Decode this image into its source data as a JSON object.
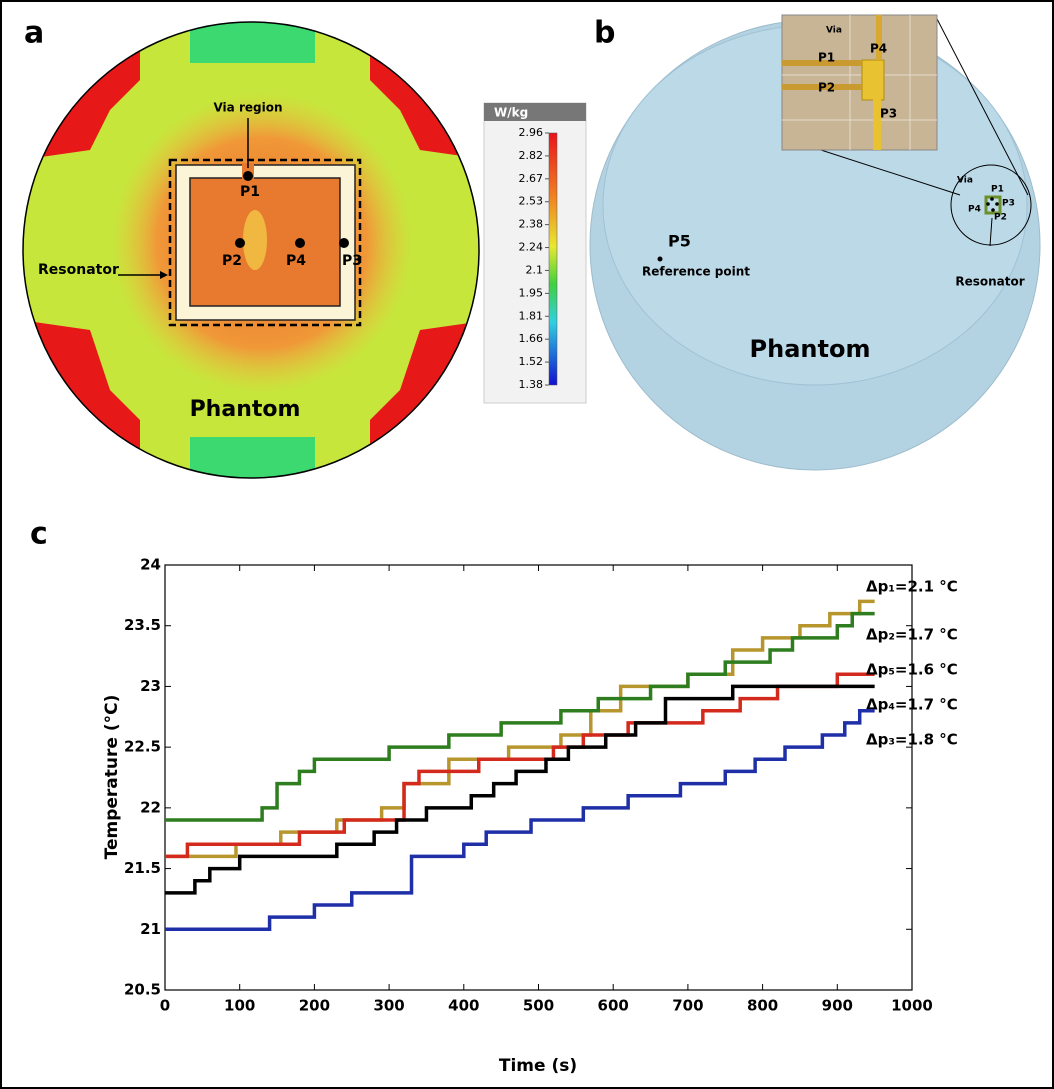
{
  "panel_a": {
    "label": "a",
    "via_label": "Via region",
    "points": [
      "P1",
      "P2",
      "P4",
      "P3"
    ],
    "resonator_label": "Resonator",
    "phantom_label": "Phantom",
    "colorbar": {
      "unit": "W/kg",
      "ticks": [
        2.96,
        2.82,
        2.67,
        2.53,
        2.38,
        2.24,
        2.1,
        1.95,
        1.81,
        1.66,
        1.52,
        1.38
      ]
    }
  },
  "panel_b": {
    "label": "b",
    "inset": {
      "via": "Via",
      "p1": "P1",
      "p4": "P4",
      "p2": "P2",
      "p3": "P3"
    },
    "detail": {
      "via": "Via",
      "p1": "P1",
      "p3": "P3",
      "p4": "P4",
      "p2": "P2"
    },
    "resonator_label": "Resonator",
    "p5": "P5",
    "reference_label": "Reference point",
    "phantom_label": "Phantom"
  },
  "chart_data": {
    "type": "step",
    "panel_label": "c",
    "x_label": "Time (s)",
    "y_label": "Temperature (°C)",
    "xlim": [
      0,
      1000
    ],
    "xticks": [
      0,
      100,
      200,
      300,
      400,
      500,
      600,
      700,
      800,
      900,
      1000
    ],
    "ylim": [
      20.5,
      24
    ],
    "yticks": [
      20.5,
      21,
      21.5,
      22,
      22.5,
      23,
      23.5,
      24
    ],
    "series": [
      {
        "name": "Δp₁=2.1 °C",
        "color": "#b8962e",
        "x": [
          0,
          95,
          155,
          230,
          290,
          320,
          380,
          460,
          530,
          570,
          610,
          700,
          760,
          800,
          850,
          890,
          930,
          950
        ],
        "values": [
          21.6,
          21.7,
          21.8,
          21.9,
          22.0,
          22.2,
          22.4,
          22.5,
          22.6,
          22.8,
          23.0,
          23.1,
          23.3,
          23.4,
          23.5,
          23.6,
          23.7,
          23.7
        ]
      },
      {
        "name": "Δp₂=1.7 °C",
        "color": "#2e7d1e",
        "x": [
          0,
          130,
          150,
          180,
          200,
          300,
          380,
          450,
          530,
          580,
          650,
          700,
          750,
          810,
          840,
          900,
          920,
          950
        ],
        "values": [
          21.9,
          22.0,
          22.2,
          22.3,
          22.4,
          22.5,
          22.6,
          22.7,
          22.8,
          22.9,
          23.0,
          23.1,
          23.2,
          23.3,
          23.4,
          23.5,
          23.6,
          23.6
        ]
      },
      {
        "name": "Δp₅=1.6 °C",
        "color": "#d42a1e",
        "x": [
          0,
          30,
          180,
          240,
          320,
          340,
          420,
          520,
          560,
          620,
          720,
          770,
          820,
          900,
          950
        ],
        "values": [
          21.6,
          21.7,
          21.8,
          21.9,
          22.2,
          22.3,
          22.4,
          22.5,
          22.6,
          22.7,
          22.8,
          22.9,
          23.0,
          23.1,
          23.1
        ]
      },
      {
        "name": "Δp₄=1.7 °C",
        "color": "#000000",
        "x": [
          0,
          40,
          60,
          100,
          230,
          280,
          310,
          350,
          410,
          440,
          470,
          510,
          540,
          590,
          630,
          670,
          760,
          950
        ],
        "values": [
          21.3,
          21.4,
          21.5,
          21.6,
          21.7,
          21.8,
          21.9,
          22.0,
          22.1,
          22.2,
          22.3,
          22.4,
          22.5,
          22.6,
          22.7,
          22.9,
          23.0,
          23.0
        ]
      },
      {
        "name": "Δp₃=1.8 °C",
        "color": "#1f2fa8",
        "x": [
          0,
          140,
          200,
          250,
          330,
          400,
          430,
          490,
          560,
          620,
          690,
          750,
          790,
          830,
          880,
          910,
          930,
          950
        ],
        "values": [
          21.0,
          21.1,
          21.2,
          21.3,
          21.6,
          21.7,
          21.8,
          21.9,
          22.0,
          22.1,
          22.2,
          22.3,
          22.4,
          22.5,
          22.6,
          22.7,
          22.8,
          22.8
        ]
      }
    ]
  }
}
